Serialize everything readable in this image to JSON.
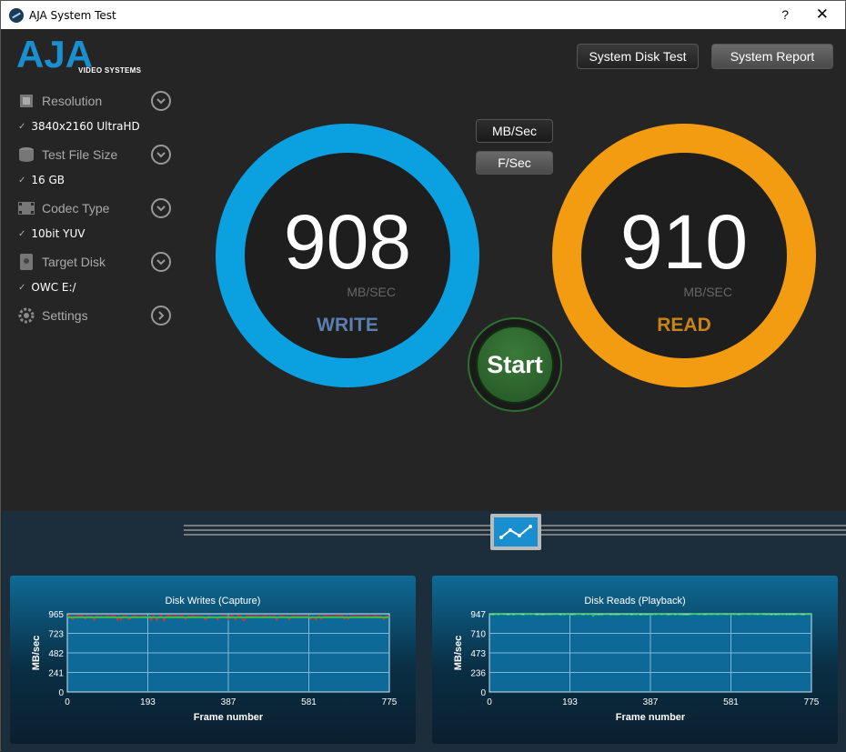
{
  "window": {
    "title": "AJA System Test",
    "help": "?",
    "close": "✕"
  },
  "logo": {
    "text": "AJA",
    "sub": "VIDEO SYSTEMS"
  },
  "buttons": {
    "system_disk_test": "System Disk Test",
    "system_report": "System Report",
    "mb_sec": "MB/Sec",
    "f_sec": "F/Sec",
    "start": "Start"
  },
  "menu": [
    {
      "label": "Resolution",
      "value": "3840x2160 UltraHD",
      "icon": "chip-icon"
    },
    {
      "label": "Test File Size",
      "value": "16 GB",
      "icon": "stack-icon"
    },
    {
      "label": "Codec Type",
      "value": "10bit YUV",
      "icon": "film-icon"
    },
    {
      "label": "Target Disk",
      "value": "OWC E:/",
      "icon": "disk-icon"
    },
    {
      "label": "Settings",
      "value": "",
      "icon": "gear-icon"
    }
  ],
  "write": {
    "value": "908",
    "unit": "MB/SEC",
    "label": "WRITE",
    "color": "#0ba0e0"
  },
  "read": {
    "value": "910",
    "unit": "MB/SEC",
    "label": "READ",
    "color": "#f39c12"
  },
  "charts": {
    "writes": {
      "title": "Disk Writes (Capture)",
      "xlabel": "Frame number",
      "ylabel": "MB/sec",
      "yticks": [
        "965",
        "723",
        "482",
        "241",
        "0"
      ],
      "xticks": [
        "0",
        "193",
        "387",
        "581",
        "775"
      ],
      "line_color": "#e03030",
      "avg_color": "#22dd44"
    },
    "reads": {
      "title": "Disk Reads (Playback)",
      "xlabel": "Frame number",
      "ylabel": "MB/sec",
      "yticks": [
        "947",
        "710",
        "473",
        "236",
        "0"
      ],
      "xticks": [
        "0",
        "193",
        "387",
        "581",
        "775"
      ],
      "line_color": "#22dd44"
    }
  },
  "chart_data": [
    {
      "type": "line",
      "title": "Disk Writes (Capture)",
      "xlabel": "Frame number",
      "ylabel": "MB/sec",
      "xlim": [
        0,
        775
      ],
      "ylim": [
        0,
        965
      ],
      "series": [
        {
          "values_range": [
            880,
            960
          ]
        }
      ]
    },
    {
      "type": "line",
      "title": "Disk Reads (Playback)",
      "xlabel": "Frame number",
      "ylabel": "MB/sec",
      "xlim": [
        0,
        775
      ],
      "ylim": [
        0,
        947
      ],
      "series": [
        {
          "values_range": [
            920,
            947
          ]
        }
      ]
    }
  ]
}
